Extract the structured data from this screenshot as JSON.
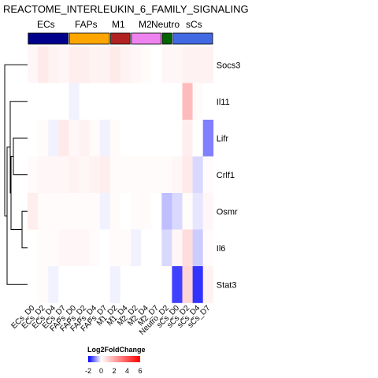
{
  "chart_data": {
    "type": "heatmap",
    "title": "REACTOME_INTERLEUKIN_6_FAMILY_SIGNALING",
    "groups": [
      {
        "name": "ECs",
        "color": "#00008B",
        "columns": [
          "ECs_D0",
          "ECs_D2",
          "ECs_D4",
          "ECs_D7"
        ]
      },
      {
        "name": "FAPs",
        "color": "#FFA500",
        "columns": [
          "FAPs_D0",
          "FAPs_D2",
          "FAPs_D4",
          "FAPs_D7"
        ]
      },
      {
        "name": "M1",
        "color": "#B22222",
        "columns": [
          "M1_D2",
          "M1_D4"
        ]
      },
      {
        "name": "M2",
        "color": "#EE82EE",
        "columns": [
          "M2_D2",
          "M2_D4",
          "M2_D7"
        ]
      },
      {
        "name": "Neutro",
        "color": "#006400",
        "columns": [
          "Neutro_D2"
        ]
      },
      {
        "name": "sCs",
        "color": "#4169E1",
        "columns": [
          "sCs_D0",
          "sCs_D2",
          "sCs_D4",
          "sCs_D7"
        ]
      }
    ],
    "columns": [
      "ECs_D0",
      "ECs_D2",
      "ECs_D4",
      "ECs_D7",
      "FAPs_D0",
      "FAPs_D2",
      "FAPs_D4",
      "FAPs_D7",
      "M1_D2",
      "M1_D4",
      "M2_D2",
      "M2_D4",
      "M2_D7",
      "Neutro_D2",
      "sCs_D0",
      "sCs_D2",
      "sCs_D4",
      "sCs_D7"
    ],
    "rows": [
      "Socs3",
      "Il11",
      "Lifr",
      "Crlf1",
      "Osmr",
      "Il6",
      "Stat3"
    ],
    "values": [
      [
        0.2,
        0.5,
        0.3,
        0.2,
        0.4,
        0.4,
        0.3,
        0.3,
        0.5,
        0.3,
        0.2,
        0.1,
        0.0,
        0.2,
        0.2,
        0.3,
        0.3,
        0.3
      ],
      [
        0.0,
        0.0,
        0.0,
        0.0,
        -0.1,
        0.0,
        0.0,
        0.0,
        0.0,
        0.0,
        0.0,
        0.0,
        0.0,
        0.0,
        0.0,
        1.6,
        0.1,
        0.0
      ],
      [
        0.0,
        0.1,
        -0.1,
        0.5,
        0.2,
        0.3,
        0.1,
        -0.1,
        0.1,
        0.0,
        0.0,
        0.0,
        0.0,
        0.0,
        0.0,
        0.4,
        0.0,
        -1.0
      ],
      [
        0.1,
        0.2,
        0.2,
        0.2,
        0.3,
        0.2,
        0.3,
        0.4,
        0.1,
        0.1,
        0.1,
        0.1,
        0.1,
        0.1,
        0.2,
        0.5,
        -0.3,
        0.1
      ],
      [
        0.4,
        0.1,
        0.1,
        0.1,
        0.1,
        0.1,
        0.1,
        -0.1,
        0.1,
        0.0,
        0.1,
        0.1,
        0.0,
        -0.5,
        -0.3,
        0.1,
        -0.2,
        0.2
      ],
      [
        0.0,
        0.1,
        0.1,
        0.2,
        0.2,
        0.2,
        0.1,
        0.0,
        0.1,
        0.1,
        -0.1,
        0.0,
        0.0,
        -0.3,
        0.2,
        0.8,
        -0.4,
        0.1
      ],
      [
        0.0,
        0.1,
        -0.1,
        0.0,
        0.0,
        0.0,
        0.0,
        0.0,
        -0.1,
        0.0,
        0.0,
        0.0,
        0.0,
        0.0,
        -1.5,
        1.0,
        -1.6,
        0.3
      ]
    ],
    "legend": {
      "title": "Log2FoldChange",
      "ticks": [
        "-2",
        "0",
        "2",
        "4",
        "6"
      ],
      "range": [
        -2,
        6
      ],
      "colors": [
        "#0000FF",
        "#FFFFFF",
        "#FF0000"
      ]
    },
    "grid": false
  }
}
